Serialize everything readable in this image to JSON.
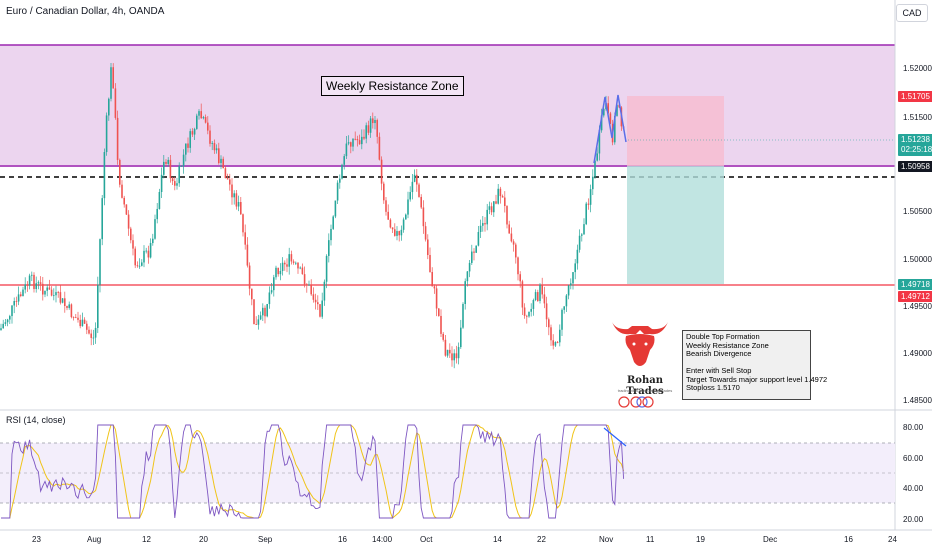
{
  "header": {
    "title": "Euro / Canadian Dollar, 4h, OANDA",
    "currency": "CAD",
    "rsi_label": "RSI (14, close)"
  },
  "price_axis": {
    "ticks": [
      "1.52000",
      "1.51500",
      "1.50500",
      "1.50000",
      "1.49500",
      "1.49000",
      "1.48500"
    ],
    "badges": {
      "stop": "1.51705",
      "current": "1.51238",
      "countdown": "02:25:18",
      "resistance": "1.50958",
      "support_a": "1.49718",
      "support_b": "1.49712"
    }
  },
  "rsi_axis": {
    "ticks": [
      "80.00",
      "60.00",
      "40.00",
      "20.00"
    ]
  },
  "time_axis": {
    "ticks": [
      "23",
      "Aug",
      "12",
      "20",
      "Sep",
      "16",
      "14:00",
      "Oct",
      "14",
      "22",
      "Nov",
      "11",
      "19",
      "Dec",
      "16",
      "24"
    ]
  },
  "annotations": {
    "zone_label": "Weekly Resistance Zone",
    "brand_name": "Rohan Trades",
    "brand_url": "tradingview.com/u/rohantrades",
    "notes": [
      "Double Top Formation",
      "Weekly Resistance Zone",
      "Bearish Divergence",
      "",
      "Enter with Sell Stop",
      "Target Towards major support level 1.4972",
      "Stoploss 1.5170"
    ]
  },
  "colors": {
    "up": "#26a69a",
    "down": "#ef5350",
    "zone_fill": "#ecd5ef",
    "zone_line": "#9c27b0",
    "support_line": "#f23645",
    "rsi_line": "#7e57c2",
    "rsi_ma": "#f0c419",
    "stop_badge": "#f23645",
    "current_badge": "#26a69a",
    "resistance_badge": "#131722"
  }
}
